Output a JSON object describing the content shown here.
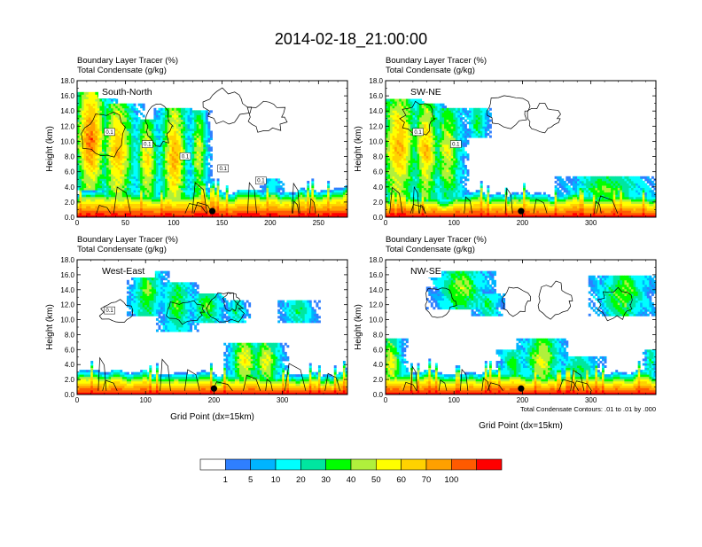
{
  "title": "2014-02-18_21:00:00",
  "colors": {
    "palette": [
      "#ffffff",
      "#2f7fff",
      "#00b4ff",
      "#00ffff",
      "#00e6a0",
      "#00ff00",
      "#b0f03c",
      "#ffff00",
      "#ffd200",
      "#ffa000",
      "#ff5a00",
      "#ff0000"
    ],
    "contour": "#000000",
    "marker": "#000000"
  },
  "colorbar": {
    "labels": [
      "1",
      "5",
      "10",
      "20",
      "30",
      "40",
      "50",
      "60",
      "70",
      "100"
    ]
  },
  "panel_headers": {
    "line1": "Boundary Layer Tracer   (%)",
    "line2": "Total Condensate   (g/kg)"
  },
  "axes": {
    "ylabel": "Height (km)",
    "xlabel": "Grid Point (dx=15km)",
    "yticks": [
      "0.0",
      "2.0",
      "4.0",
      "6.0",
      "8.0",
      "10.0",
      "12.0",
      "14.0",
      "16.0",
      "18.0"
    ]
  },
  "contour_note": "Total Condensate Contours: .01 to .01 by .000",
  "chart_data": [
    {
      "type": "heatmap",
      "label": "South-North",
      "xlim": [
        0,
        280
      ],
      "xticks": [
        0,
        50,
        100,
        150,
        200,
        250
      ],
      "ylim": [
        0,
        18
      ],
      "marker_x": 140,
      "contour_labels": [
        "0.1",
        "0.1",
        "0.1",
        "0.1",
        "0.1"
      ],
      "show_xlabel": false,
      "show_note": false
    },
    {
      "type": "heatmap",
      "label": "SW-NE",
      "xlim": [
        0,
        395
      ],
      "xticks": [
        0,
        100,
        200,
        300
      ],
      "ylim": [
        0,
        18
      ],
      "marker_x": 198,
      "contour_labels": [
        "0.1",
        "0.1"
      ],
      "show_xlabel": false,
      "show_note": false
    },
    {
      "type": "heatmap",
      "label": "West-East",
      "xlim": [
        0,
        395
      ],
      "xticks": [
        0,
        100,
        200,
        300
      ],
      "ylim": [
        0,
        18
      ],
      "marker_x": 200,
      "contour_labels": [
        "0.1"
      ],
      "show_xlabel": true,
      "show_note": false
    },
    {
      "type": "heatmap",
      "label": "NW-SE",
      "xlim": [
        0,
        395
      ],
      "xticks": [
        0,
        100,
        200,
        300
      ],
      "ylim": [
        0,
        18
      ],
      "marker_x": 198,
      "contour_labels": [],
      "show_xlabel": true,
      "show_note": true
    }
  ]
}
